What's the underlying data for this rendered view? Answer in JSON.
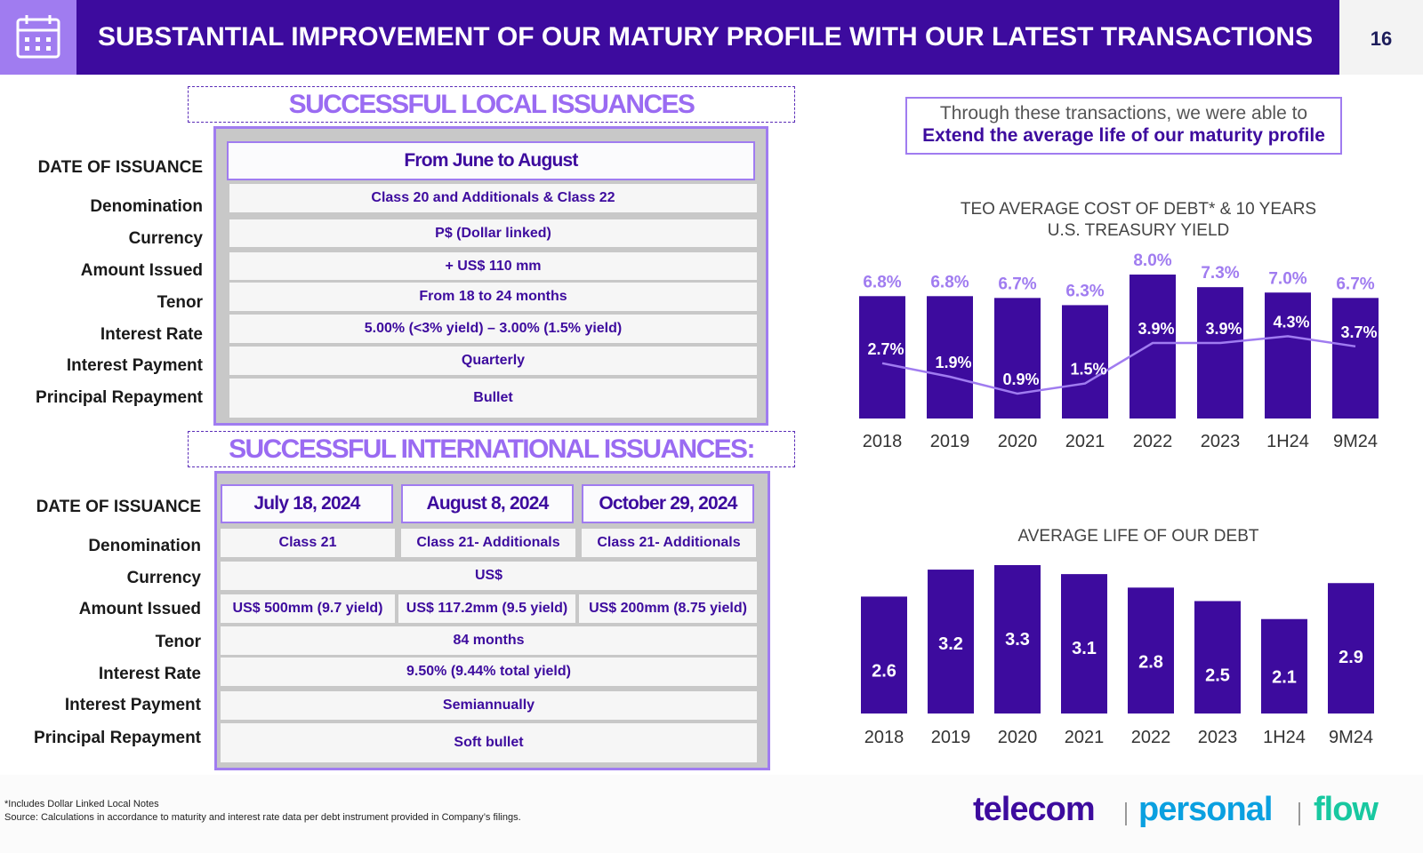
{
  "header": {
    "title": "SUBSTANTIAL IMPROVEMENT OF OUR MATURY PROFILE WITH OUR LATEST TRANSACTIONS",
    "page_number": "16",
    "icon": "calendar-icon"
  },
  "local": {
    "title": "SUCCESSFUL LOCAL ISSUANCES",
    "labels": [
      "DATE OF ISSUANCE",
      "Denomination",
      "Currency",
      "Amount Issued",
      "Tenor",
      "Interest Rate",
      "Interest Payment",
      "Principal Repayment"
    ],
    "date": "From June to August",
    "denomination": "Class 20 and Additionals & Class 22",
    "currency": "P$ (Dollar linked)",
    "amount": "+ US$ 110 mm",
    "tenor": "From 18 to 24 months",
    "interest_rate": "5.00% (<3% yield) – 3.00% (1.5% yield)",
    "interest_payment": "Quarterly",
    "principal": "Bullet"
  },
  "intl": {
    "title": "SUCCESSFUL INTERNATIONAL ISSUANCES:",
    "labels": [
      "DATE OF ISSUANCE",
      "Denomination",
      "Currency",
      "Amount Issued",
      "Tenor",
      "Interest Rate",
      "Interest Payment",
      "Principal Repayment"
    ],
    "dates": [
      "July 18, 2024",
      "August 8, 2024",
      "October 29, 2024"
    ],
    "denominations": [
      "Class 21",
      "Class 21- Additionals",
      "Class 21- Additionals"
    ],
    "currency": "US$",
    "amounts": [
      "US$ 500mm (9.7 yield)",
      "US$ 117.2mm (9.5 yield)",
      "US$ 200mm (8.75 yield)"
    ],
    "tenor": "84 months",
    "interest_rate": "9.50% (9.44% total yield)",
    "interest_payment": "Semiannually",
    "principal": "Soft bullet"
  },
  "note": {
    "line1": "Through these transactions, we were able to",
    "line2": "Extend the average life of our maturity profile"
  },
  "colors": {
    "primary": "#3d0b9e",
    "accent": "#a07cf0",
    "cyan": "#0aa0e0",
    "teal": "#18c8a0"
  },
  "chart_data": [
    {
      "type": "bar",
      "title": "TEO AVERAGE COST OF DEBT* & 10 YEARS U.S. TREASURY YIELD",
      "categories": [
        "2018",
        "2019",
        "2020",
        "2021",
        "2022",
        "2023",
        "1H24",
        "9M24"
      ],
      "series": [
        {
          "type": "bar",
          "values": [
            6.8,
            6.8,
            6.7,
            6.3,
            8.0,
            7.3,
            7.0,
            6.7
          ],
          "labels": [
            "6.8%",
            "6.8%",
            "6.7%",
            "6.3%",
            "8.0%",
            "7.3%",
            "7.0%",
            "6.7%"
          ]
        },
        {
          "type": "line",
          "values": [
            2.7,
            1.9,
            0.9,
            1.5,
            3.9,
            3.9,
            4.3,
            3.7
          ],
          "labels": [
            "2.7%",
            "1.9%",
            "0.9%",
            "1.5%",
            "3.9%",
            "3.9%",
            "4.3%",
            "3.7%"
          ]
        }
      ]
    },
    {
      "type": "bar",
      "title": "AVERAGE LIFE OF OUR DEBT",
      "categories": [
        "2018",
        "2019",
        "2020",
        "2021",
        "2022",
        "2023",
        "1H24",
        "9M24"
      ],
      "values": [
        2.6,
        3.2,
        3.3,
        3.1,
        2.8,
        2.5,
        2.1,
        2.9
      ],
      "labels": [
        "2.6",
        "3.2",
        "3.3",
        "3.1",
        "2.8",
        "2.5",
        "2.1",
        "2.9"
      ]
    }
  ],
  "footer": {
    "note1": "*Includes Dollar Linked Local Notes",
    "note2": "Source: Calculations in accordance to maturity and interest rate data per debt instrument provided in Company’s filings.",
    "logo1": "telecom",
    "logo2": "personal",
    "logo3": "flow"
  }
}
